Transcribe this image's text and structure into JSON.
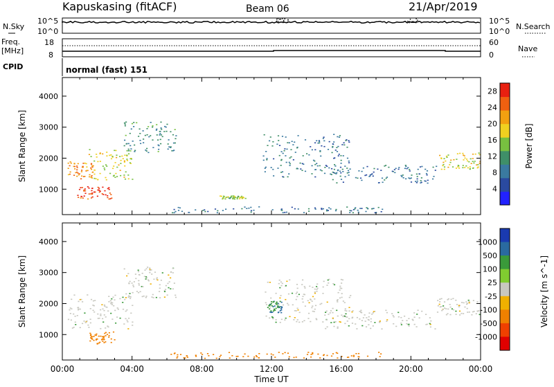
{
  "header": {
    "station": "Kapuskasing (fitACF)",
    "beam": "Beam 06",
    "date": "21/Apr/2019"
  },
  "noise_panel": {
    "left_label": "N.Sky",
    "right_label": "N.Search",
    "tick_top": "10^5",
    "tick_bottom": "10^0"
  },
  "freq_panel": {
    "label_line1": "Freq.",
    "label_line2": "[MHz]",
    "nave_label": "Nave",
    "left_ticks": [
      "18",
      "8"
    ],
    "right_ticks": [
      "60",
      "0"
    ]
  },
  "cpid": {
    "label": "CPID",
    "value": "normal (fast) 151"
  },
  "colors": {
    "power": [
      "#2222ff",
      "#2a4aa0",
      "#3a7aa0",
      "#3f8f68",
      "#78c040",
      "#f0d020",
      "#f2a010",
      "#f06010",
      "#e82010"
    ],
    "velocity_scale": [
      "#e00000",
      "#f04000",
      "#f08000",
      "#f0b000",
      "#c8c8c0",
      "#80cc30",
      "#3a9a3a",
      "#2a6aa0",
      "#1a3ab0"
    ],
    "ground_scatter": "#c8c8c0"
  },
  "chart_data": [
    {
      "type": "heatmap",
      "name": "Power",
      "xlabel": "Time UT",
      "ylabel": "Slant Range [km]",
      "x_ticks": [
        "00:00",
        "04:00",
        "08:00",
        "12:00",
        "16:00",
        "20:00",
        "00:00"
      ],
      "xlim_hours": [
        0,
        24
      ],
      "ylim_km": [
        180,
        4600
      ],
      "y_ticks": [
        1000,
        2000,
        3000,
        4000
      ],
      "colorbar": {
        "label": "Power [dB]",
        "ticks": [
          4,
          8,
          12,
          16,
          20,
          24,
          28
        ],
        "range": [
          0,
          30
        ]
      },
      "regions": [
        {
          "t0": 0.3,
          "t1": 1.8,
          "r0": 1350,
          "r1": 1900,
          "power": 24
        },
        {
          "t0": 0.8,
          "t1": 2.8,
          "r0": 700,
          "r1": 1100,
          "power": 28
        },
        {
          "t0": 1.5,
          "t1": 4.0,
          "r0": 1300,
          "r1": 2300,
          "power": 18
        },
        {
          "t0": 3.5,
          "t1": 6.5,
          "r0": 2200,
          "r1": 3200,
          "power": 10
        },
        {
          "t0": 6.2,
          "t1": 18.5,
          "r0": 250,
          "r1": 450,
          "power": 8
        },
        {
          "t0": 9.0,
          "t1": 10.5,
          "r0": 700,
          "r1": 800,
          "power": 16
        },
        {
          "t0": 11.5,
          "t1": 16.5,
          "r0": 1400,
          "r1": 2800,
          "power": 8
        },
        {
          "t0": 15.0,
          "t1": 21.5,
          "r0": 1200,
          "r1": 1800,
          "power": 7
        },
        {
          "t0": 21.5,
          "t1": 24.0,
          "r0": 1650,
          "r1": 2200,
          "power": 18
        }
      ]
    },
    {
      "type": "heatmap",
      "name": "Velocity",
      "xlabel": "Time UT",
      "ylabel": "Slant Range [km]",
      "x_ticks": [
        "00:00",
        "04:00",
        "08:00",
        "12:00",
        "16:00",
        "20:00",
        "00:00"
      ],
      "xlim_hours": [
        0,
        24
      ],
      "ylim_km": [
        180,
        4600
      ],
      "y_ticks": [
        1000,
        2000,
        3000,
        4000
      ],
      "colorbar": {
        "label": "Velocity [m s^-1]",
        "ticks": [
          1000,
          500,
          100,
          25,
          -25,
          -100,
          -500,
          -1000
        ]
      },
      "regions": [
        {
          "t0": 0.3,
          "t1": 4.0,
          "r0": 1200,
          "r1": 2300,
          "velocity": 0
        },
        {
          "t0": 1.5,
          "t1": 3.0,
          "r0": 700,
          "r1": 1100,
          "velocity": -300
        },
        {
          "t0": 3.5,
          "t1": 6.5,
          "r0": 2200,
          "r1": 3200,
          "velocity": 0
        },
        {
          "t0": 6.2,
          "t1": 18.5,
          "r0": 250,
          "r1": 450,
          "velocity": -150
        },
        {
          "t0": 11.5,
          "t1": 16.5,
          "r0": 1400,
          "r1": 2800,
          "velocity": 0
        },
        {
          "t0": 11.8,
          "t1": 12.6,
          "r0": 1700,
          "r1": 2100,
          "velocity": 100
        },
        {
          "t0": 15.0,
          "t1": 21.5,
          "r0": 1200,
          "r1": 1800,
          "velocity": 0
        },
        {
          "t0": 21.5,
          "t1": 24.0,
          "r0": 1650,
          "r1": 2200,
          "velocity": 0
        }
      ]
    }
  ]
}
